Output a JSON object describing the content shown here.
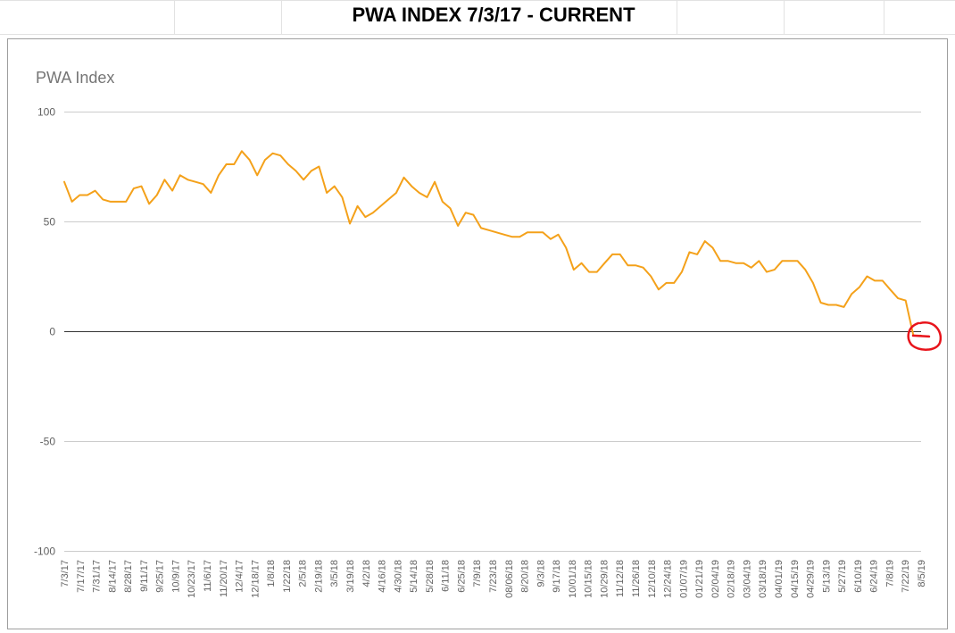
{
  "sheet": {
    "title": "PWA INDEX 7/3/17 - CURRENT"
  },
  "chart_data": {
    "type": "line",
    "title": "PWA Index",
    "xlabel": "",
    "ylabel": "",
    "ylim": [
      -100,
      100
    ],
    "y_ticks": [
      100,
      50,
      0,
      -50,
      -100
    ],
    "y_tick_labels": [
      "100",
      "50",
      "0",
      "-50",
      "-100"
    ],
    "grid": true,
    "legend": "none",
    "line_color": "#f4a11a",
    "zero_line_color": "#333333",
    "annotation_color": "#e8141b",
    "annotation": "red hand-drawn circle around the final data point",
    "x_tick_labels": [
      "7/3/17",
      "7/17/17",
      "7/31/17",
      "8/14/17",
      "8/28/17",
      "9/11/17",
      "9/25/17",
      "10/9/17",
      "10/23/17",
      "11/6/17",
      "11/20/17",
      "12/4/17",
      "12/18/17",
      "1/8/18",
      "1/22/18",
      "2/5/18",
      "2/19/18",
      "3/5/18",
      "3/19/18",
      "4/2/18",
      "4/16/18",
      "4/30/18",
      "5/14/18",
      "5/28/18",
      "6/11/18",
      "6/25/18",
      "7/9/18",
      "7/23/18",
      "08/06/18",
      "8/20/18",
      "9/3/18",
      "9/17/18",
      "10/01/18",
      "10/15/18",
      "10/29/18",
      "11/12/18",
      "11/26/18",
      "12/10/18",
      "12/24/18",
      "01/07/19",
      "01/21/19",
      "02/04/19",
      "02/18/19",
      "03/04/19",
      "03/18/19",
      "04/01/19",
      "04/15/19",
      "04/29/19",
      "5/13/19",
      "5/27/19",
      "6/10/19",
      "6/24/19",
      "7/8/19",
      "7/22/19",
      "8/5/19"
    ],
    "series": [
      {
        "values": [
          68,
          59,
          62,
          62,
          64,
          60,
          59,
          59,
          59,
          65,
          66,
          58,
          62,
          69,
          64,
          71,
          69,
          68,
          67,
          63,
          71,
          76,
          76,
          82,
          78,
          71,
          78,
          81,
          80,
          76,
          73,
          69,
          73,
          75,
          63,
          66,
          61,
          49,
          57,
          52,
          54,
          57,
          60,
          63,
          70,
          66,
          63,
          61,
          68,
          59,
          56,
          48,
          54,
          53,
          47,
          46,
          45,
          44,
          43,
          43,
          45,
          45,
          45,
          42,
          44,
          38,
          28,
          31,
          27,
          27,
          31,
          35,
          35,
          30,
          30,
          29,
          25,
          19,
          22,
          22,
          27,
          36,
          35,
          41,
          38,
          32,
          32,
          31,
          31,
          29,
          32,
          27,
          28,
          32,
          32,
          32,
          28,
          22,
          13,
          12,
          12,
          11,
          17,
          20,
          25,
          23,
          23,
          19,
          15,
          14,
          -2,
          -2
        ]
      }
    ]
  }
}
